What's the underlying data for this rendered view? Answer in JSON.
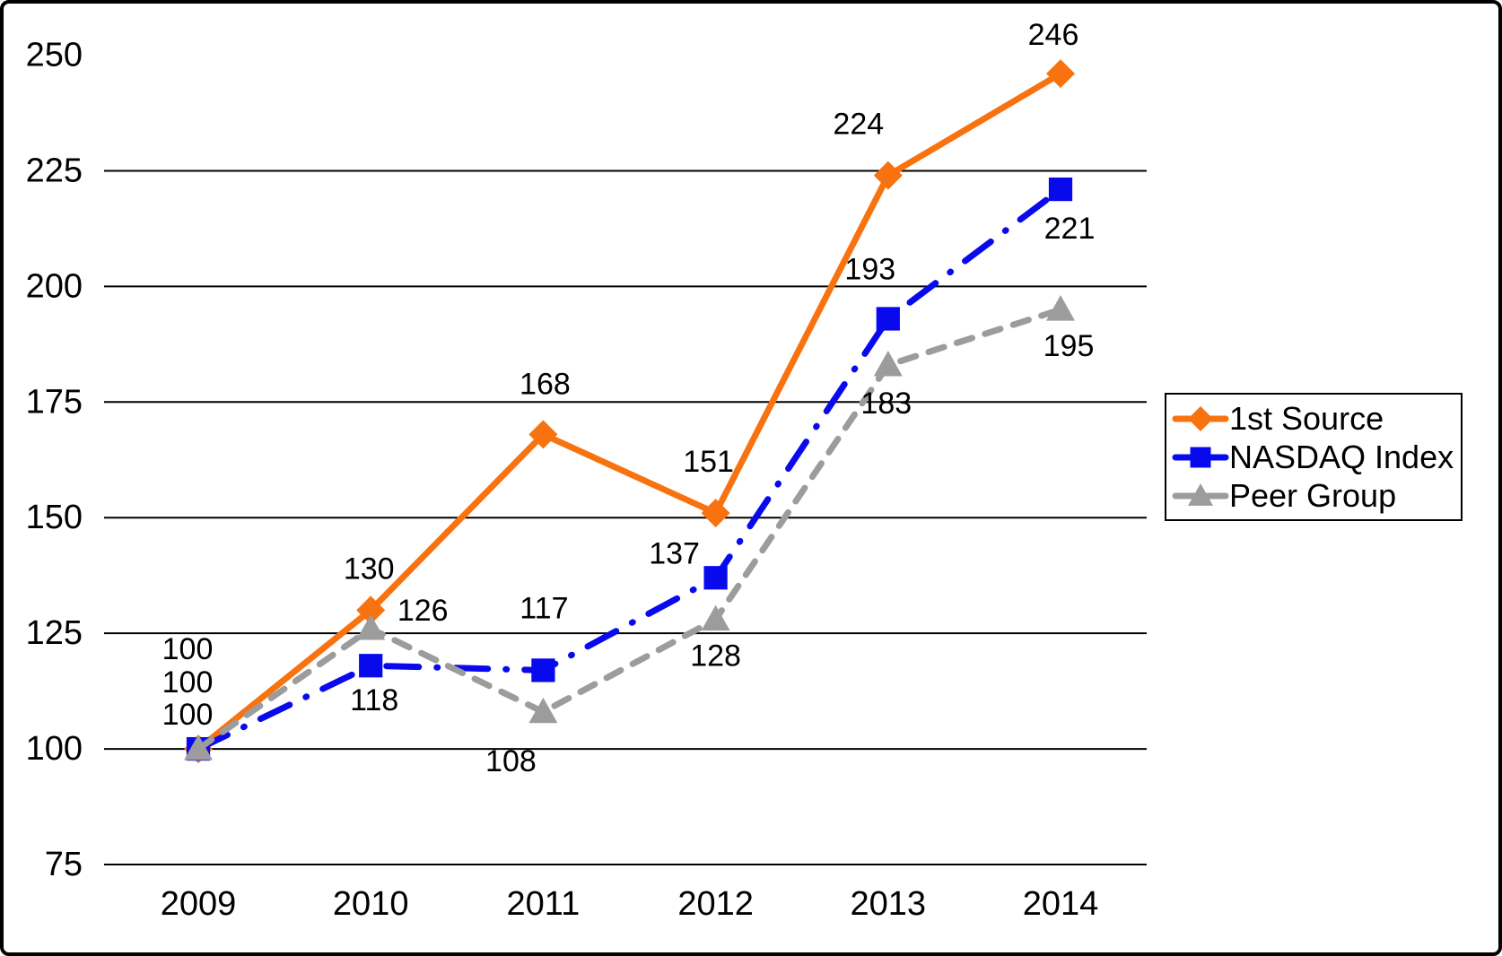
{
  "chart_data": {
    "type": "line",
    "title": "",
    "xlabel": "",
    "ylabel": "",
    "categories": [
      "2009",
      "2010",
      "2011",
      "2012",
      "2013",
      "2014"
    ],
    "y_axis": {
      "ylim": [
        75,
        250
      ],
      "ticks": [
        75,
        100,
        125,
        150,
        175,
        200,
        225,
        250
      ],
      "gridline_ticks": [
        75,
        100,
        125,
        150,
        175,
        200,
        225
      ],
      "grid": true
    },
    "legend_position": "right",
    "series": [
      {
        "name": "1st Source",
        "color": "#F87310",
        "marker": "diamond",
        "line_style": "solid",
        "values": [
          100,
          130,
          168,
          151,
          224,
          246
        ],
        "labels": [
          "100",
          "130",
          "168",
          "151",
          "224",
          "246"
        ],
        "label_offsets": [
          [
            -12,
            -111
          ],
          [
            -2,
            -46
          ],
          [
            2,
            -56
          ],
          [
            -8,
            -57
          ],
          [
            -33,
            -57
          ],
          [
            -8,
            -43
          ]
        ]
      },
      {
        "name": "NASDAQ Index",
        "color": "#0909EE",
        "marker": "square",
        "line_style": "dash-dot",
        "values": [
          100,
          118,
          117,
          137,
          193,
          221
        ],
        "labels": [
          "100",
          "118",
          "117",
          "137",
          "193",
          "221"
        ],
        "label_offsets": [
          [
            -12,
            -74
          ],
          [
            4,
            39
          ],
          [
            1,
            -69
          ],
          [
            -46,
            -27
          ],
          [
            -20,
            -55
          ],
          [
            10,
            44
          ]
        ]
      },
      {
        "name": "Peer Group",
        "color": "#9C9C9C",
        "marker": "triangle",
        "line_style": "dashed",
        "values": [
          100,
          126,
          108,
          128,
          183,
          195
        ],
        "labels": [
          "100",
          "126",
          "108",
          "128",
          "183",
          "195"
        ],
        "label_offsets": [
          [
            -12,
            -38
          ],
          [
            58,
            -20
          ],
          [
            -36,
            55
          ],
          [
            0,
            41
          ],
          [
            -2,
            43
          ],
          [
            9,
            41
          ]
        ]
      }
    ],
    "colors": {
      "gridline": "#000000",
      "text": "#000000",
      "background": "#ffffff"
    }
  }
}
